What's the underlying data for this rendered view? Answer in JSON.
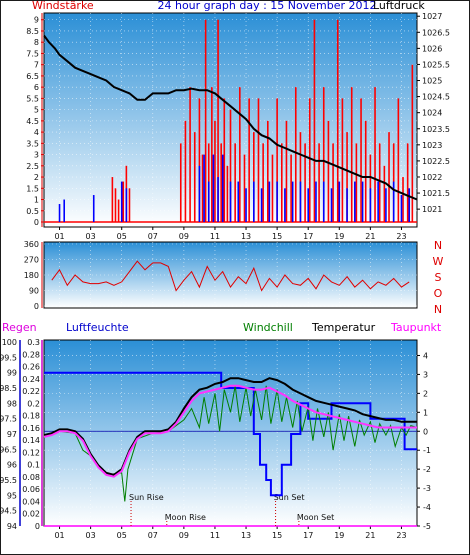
{
  "title": "24 hour graph day : 15 November 2012",
  "colors": {
    "frame": "#1b1b1b",
    "plot_bg_top": "#2b8fd6",
    "plot_bg_bottom": "#ffffff",
    "wind_gust": "#ff0000",
    "wind_avg": "#0000ff",
    "pressure": "#000000",
    "direction": "#e00000",
    "humidity": "#0000ff",
    "windchill": "#007f00",
    "temperature": "#000000",
    "dewpoint": "#ff33ff",
    "moon_sun": "#cc0000"
  },
  "chart_data": [
    {
      "type": "line",
      "panel": "wind_pressure",
      "labels": {
        "left": "Windstärke",
        "right": "Luftdruck"
      },
      "x_ticks": [
        "01",
        "03",
        "05",
        "07",
        "09",
        "11",
        "13",
        "15",
        "17",
        "19",
        "21",
        "23"
      ],
      "xlim": [
        0,
        24
      ],
      "left_axis": {
        "ticks": [
          "0",
          "0.5",
          "1",
          "1.5",
          "2",
          "2.5",
          "3",
          "3.5",
          "4",
          "4.5",
          "5",
          "5.5",
          "6",
          "6.5",
          "7",
          "7.5",
          "8",
          "8.5",
          "9"
        ],
        "ylim": [
          0,
          9.3
        ]
      },
      "right_axis": {
        "ticks": [
          "1021",
          "1021.5",
          "1022",
          "1022.5",
          "1023",
          "1023.5",
          "1024",
          "1024.5",
          "1025",
          "1025.5",
          "1026",
          "1026.5",
          "1027"
        ],
        "ylim": [
          1020.6,
          1027.1
        ]
      },
      "series": [
        {
          "axis": "right",
          "x": [
            0,
            0.3,
            0.7,
            1,
            1.5,
            2,
            2.5,
            3,
            3.5,
            4,
            4.5,
            5,
            5.5,
            6,
            6.5,
            7,
            7.5,
            8,
            8.5,
            9,
            9.5,
            10,
            10.5,
            11,
            11.5,
            12,
            12.5,
            13,
            13.5,
            14,
            14.5,
            15,
            15.5,
            16,
            16.5,
            17,
            17.5,
            18,
            18.5,
            19,
            19.5,
            20,
            20.5,
            21,
            21.5,
            22,
            22.5,
            23,
            23.5,
            24
          ],
          "y": [
            1026.4,
            1026.2,
            1026.0,
            1025.8,
            1025.6,
            1025.4,
            1025.3,
            1025.2,
            1025.1,
            1025.0,
            1024.8,
            1024.7,
            1024.6,
            1024.4,
            1024.4,
            1024.6,
            1024.6,
            1024.6,
            1024.7,
            1024.7,
            1024.75,
            1024.7,
            1024.7,
            1024.6,
            1024.4,
            1024.2,
            1024.0,
            1023.8,
            1023.5,
            1023.3,
            1023.2,
            1023.0,
            1022.9,
            1022.8,
            1022.7,
            1022.6,
            1022.5,
            1022.5,
            1022.4,
            1022.3,
            1022.2,
            1022.1,
            1022.0,
            1022.0,
            1021.9,
            1021.8,
            1021.6,
            1021.5,
            1021.4,
            1021.3
          ]
        },
        {
          "axis": "left",
          "kind": "gust",
          "hours": [
            4.4,
            4.6,
            4.8,
            5.1,
            5.3,
            5.5,
            8.8,
            9.1,
            9.4,
            9.7,
            10.0,
            10.2,
            10.4,
            10.6,
            10.8,
            11.0,
            11.2,
            11.4,
            11.6,
            11.8,
            12.0,
            12.3,
            12.6,
            12.9,
            13.2,
            13.5,
            13.8,
            14.1,
            14.4,
            14.7,
            15.0,
            15.3,
            15.6,
            15.9,
            16.2,
            16.5,
            16.8,
            17.1,
            17.4,
            17.7,
            18.0,
            18.3,
            18.6,
            18.9,
            19.2,
            19.5,
            19.8,
            20.1,
            20.4,
            20.7,
            21.0,
            21.3,
            21.6,
            21.9,
            22.2,
            22.5,
            22.8,
            23.1,
            23.4,
            23.7
          ],
          "values": [
            2.0,
            1.5,
            1.0,
            1.8,
            2.5,
            1.5,
            3.5,
            4.5,
            6.0,
            4.0,
            5.5,
            3.0,
            9.0,
            3.5,
            6.0,
            4.5,
            9.0,
            3.5,
            5.5,
            2.5,
            5.0,
            3.5,
            6.0,
            3.0,
            5.5,
            4.0,
            5.5,
            3.5,
            4.5,
            3.0,
            5.5,
            3.5,
            4.5,
            3.0,
            6.0,
            4.0,
            3.5,
            5.5,
            9.0,
            3.5,
            6.0,
            4.5,
            3.5,
            9.0,
            5.5,
            4.0,
            6.0,
            3.5,
            5.5,
            4.5,
            3.0,
            6.0,
            3.5,
            2.5,
            4.0,
            3.5,
            5.5,
            2.0,
            3.5,
            7.0
          ]
        },
        {
          "axis": "left",
          "kind": "average",
          "hours": [
            1.0,
            1.3,
            3.2,
            5.0,
            5.3,
            10.0,
            10.3,
            10.6,
            10.9,
            11.2,
            11.5,
            12.0,
            12.5,
            13.0,
            13.5,
            14.0,
            14.5,
            15.0,
            15.5,
            16.0,
            16.5,
            17.0,
            17.5,
            18.0,
            18.5,
            19.0,
            19.5,
            20.0,
            20.5,
            21.0,
            21.5,
            22.0,
            22.5,
            23.0,
            23.5
          ],
          "values": [
            0.8,
            1.0,
            1.2,
            1.8,
            1.5,
            2.5,
            3.0,
            1.8,
            3.0,
            2.0,
            3.0,
            1.8,
            1.8,
            1.5,
            1.8,
            1.5,
            1.8,
            1.8,
            1.5,
            1.8,
            1.8,
            1.5,
            1.8,
            1.8,
            1.5,
            1.8,
            1.5,
            1.8,
            1.8,
            1.5,
            1.8,
            1.5,
            1.8,
            1.2,
            1.5
          ]
        }
      ]
    },
    {
      "type": "line",
      "panel": "wind_direction",
      "left_axis": {
        "ticks": [
          "0",
          "90",
          "180",
          "270",
          "360"
        ],
        "ylim": [
          0,
          360
        ]
      },
      "right_labels": [
        "N",
        "W",
        "S",
        "O",
        "N"
      ],
      "x": [
        0.5,
        1,
        1.5,
        2,
        2.5,
        3,
        3.5,
        4,
        4.5,
        5,
        5.5,
        6,
        6.5,
        7,
        7.5,
        8,
        8.5,
        9,
        9.5,
        10,
        10.5,
        11,
        11.5,
        12,
        12.5,
        13,
        13.5,
        14,
        14.5,
        15,
        15.5,
        16,
        16.5,
        17,
        17.5,
        18,
        18.5,
        19,
        19.5,
        20,
        20.5,
        21,
        21.5,
        22,
        22.5,
        23,
        23.5
      ],
      "y": [
        150,
        210,
        120,
        180,
        140,
        130,
        130,
        140,
        120,
        140,
        200,
        260,
        210,
        250,
        250,
        230,
        90,
        150,
        200,
        110,
        230,
        150,
        200,
        110,
        170,
        130,
        220,
        90,
        160,
        110,
        180,
        130,
        120,
        160,
        100,
        180,
        140,
        120,
        170,
        110,
        150,
        100,
        140,
        120,
        160,
        110,
        140
      ]
    },
    {
      "type": "line",
      "panel": "temperature_humidity",
      "labels": {
        "regen": "Regen",
        "humidity": "Luftfeuchte",
        "windchill": "Windchill",
        "temperature": "Temperatur",
        "dewpoint": "Taupunkt"
      },
      "humidity_axis": {
        "ticks": [
          "94",
          "94.5",
          "95",
          "95.5",
          "96",
          "96.5",
          "97",
          "97.5",
          "98",
          "98.5",
          "99",
          "99.5",
          "100"
        ],
        "ylim": [
          94,
          100
        ]
      },
      "rain_axis": {
        "ticks": [
          "0",
          "0.02",
          "0.04",
          "0.06",
          "0.08",
          "0.1",
          "0.12",
          "0.14",
          "0.16",
          "0.18",
          "0.2",
          "0.22",
          "0.24",
          "0.26",
          "0.28",
          "0.3"
        ],
        "ylim": [
          0,
          0.3
        ]
      },
      "temp_axis": {
        "ticks": [
          "-5",
          "-4",
          "-3",
          "-2",
          "-1",
          "0",
          "1",
          "2",
          "3",
          "4"
        ],
        "ylim": [
          -5,
          4.5
        ]
      },
      "markers": [
        {
          "label": "Sun Rise",
          "hour": 5.6
        },
        {
          "label": "Moon Rise",
          "hour": 7.9
        },
        {
          "label": "Sun Set",
          "hour": 14.9
        },
        {
          "label": "Moon Set",
          "hour": 16.4
        }
      ],
      "series": [
        {
          "name": "Temperatur",
          "axis": "temp",
          "x": [
            0,
            0.5,
            1,
            1.5,
            2,
            2.5,
            3,
            3.5,
            4,
            4.5,
            5,
            5.5,
            6,
            6.5,
            7,
            7.5,
            8,
            8.5,
            9,
            9.5,
            10,
            10.5,
            11,
            11.5,
            12,
            12.5,
            13,
            13.5,
            14,
            14.5,
            15,
            15.5,
            16,
            16.5,
            17,
            17.5,
            18,
            18.5,
            19,
            19.5,
            20,
            20.5,
            21,
            21.5,
            22,
            22.5,
            23,
            23.5,
            24
          ],
          "y": [
            -0.2,
            -0.1,
            0.1,
            0.1,
            0.0,
            -0.4,
            -1.2,
            -1.8,
            -2.2,
            -2.3,
            -2.0,
            -1.0,
            -0.3,
            0.0,
            0.0,
            0.0,
            0.1,
            0.5,
            1.2,
            1.8,
            2.2,
            2.3,
            2.5,
            2.6,
            2.8,
            2.8,
            2.7,
            2.6,
            2.6,
            2.8,
            2.7,
            2.5,
            2.2,
            2.0,
            1.8,
            1.6,
            1.5,
            1.4,
            1.3,
            1.2,
            1.1,
            0.9,
            0.8,
            0.7,
            0.6,
            0.6,
            0.5,
            0.5,
            0.5
          ]
        },
        {
          "name": "Taupunkt",
          "axis": "temp",
          "x": [
            0,
            0.5,
            1,
            1.5,
            2,
            2.5,
            3,
            3.5,
            4,
            4.5,
            5,
            5.5,
            6,
            6.5,
            7,
            7.5,
            8,
            8.5,
            9,
            9.5,
            10,
            10.5,
            11,
            11.5,
            12,
            12.5,
            13,
            13.5,
            14,
            14.5,
            15,
            15.5,
            16,
            16.5,
            17,
            17.5,
            18,
            18.5,
            19,
            19.5,
            20,
            20.5,
            21,
            21.5,
            22,
            22.5,
            23,
            23.5,
            24
          ],
          "y": [
            -0.3,
            -0.2,
            0.0,
            0.0,
            -0.1,
            -0.5,
            -1.3,
            -1.9,
            -2.3,
            -2.4,
            -2.1,
            -1.1,
            -0.4,
            -0.1,
            -0.1,
            -0.1,
            0.0,
            0.4,
            1.0,
            1.6,
            2.0,
            2.1,
            2.2,
            2.3,
            2.4,
            2.4,
            2.3,
            2.2,
            2.2,
            2.3,
            2.1,
            1.9,
            1.6,
            1.4,
            1.2,
            1.0,
            0.9,
            0.8,
            0.7,
            0.6,
            0.5,
            0.4,
            0.3,
            0.2,
            0.2,
            0.2,
            0.2,
            0.2,
            0.2
          ]
        },
        {
          "name": "Windchill",
          "axis": "temp",
          "x": [
            0,
            1,
            2,
            2.5,
            3,
            4,
            5,
            5.2,
            5.4,
            6,
            7,
            8,
            9,
            9.5,
            10,
            10.3,
            10.6,
            11,
            11.3,
            11.6,
            12,
            12.3,
            12.6,
            13,
            13.3,
            13.6,
            14,
            14.3,
            14.6,
            15,
            15.3,
            15.6,
            16,
            16.3,
            16.6,
            17,
            17.3,
            17.6,
            18,
            18.3,
            18.6,
            19,
            19.3,
            19.6,
            20,
            20.3,
            20.6,
            21,
            21.3,
            21.6,
            22,
            22.3,
            22.6,
            23,
            23.3,
            23.6,
            24
          ],
          "y": [
            -0.3,
            0.0,
            -0.1,
            -1.0,
            -1.3,
            -2.3,
            -2.2,
            -3.7,
            -2.0,
            -0.4,
            -0.1,
            0.0,
            0.6,
            1.2,
            0.2,
            1.8,
            0.4,
            2.0,
            0.0,
            2.2,
            1.0,
            2.4,
            0.5,
            2.3,
            0.8,
            2.2,
            0.6,
            2.4,
            0.4,
            2.2,
            0.5,
            1.8,
            0.2,
            1.6,
            0.0,
            1.3,
            -0.5,
            1.2,
            -0.3,
            1.0,
            -1.0,
            0.9,
            -0.5,
            0.8,
            -0.8,
            0.6,
            -0.2,
            0.5,
            -0.6,
            0.4,
            -0.2,
            0.3,
            -0.8,
            0.2,
            -0.2,
            0.3,
            0.2
          ]
        },
        {
          "name": "Luftfeuchte",
          "axis": "humidity",
          "x": [
            0,
            11.4,
            11.4,
            13.5,
            13.5,
            13.9,
            13.9,
            14.3,
            14.3,
            14.6,
            14.6,
            15.3,
            15.3,
            15.9,
            15.9,
            16.5,
            16.5,
            17.0,
            17.0,
            18.5,
            18.5,
            21.0,
            21.0,
            23.2,
            23.2,
            24
          ],
          "y": [
            99,
            99,
            98.5,
            98.5,
            97,
            97,
            96,
            96,
            95.5,
            95.5,
            95.0,
            95.0,
            96,
            96,
            97,
            97,
            98.0,
            98.0,
            97.5,
            97.5,
            98.0,
            98.0,
            97.5,
            97.5,
            96.5,
            96.5
          ]
        }
      ]
    }
  ]
}
